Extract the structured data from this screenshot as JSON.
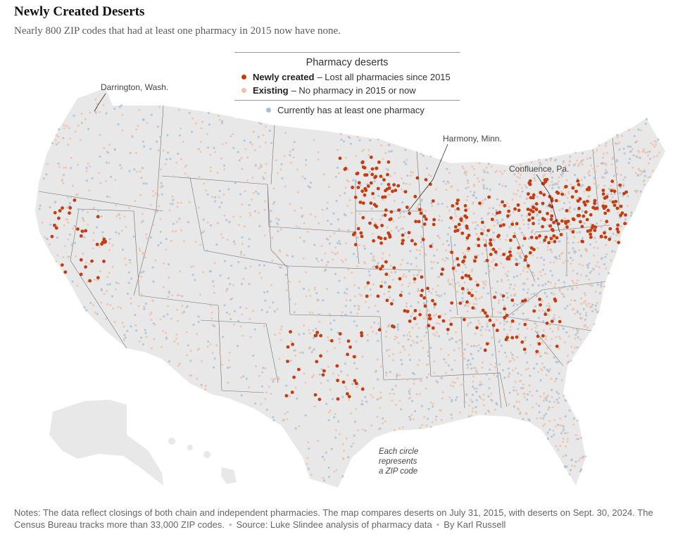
{
  "header": {
    "title": "Newly Created Deserts",
    "subtitle": "Nearly 800 ZIP codes that had at least one pharmacy in 2015 now have none."
  },
  "legend": {
    "title": "Pharmacy deserts",
    "items": [
      {
        "key": "newly",
        "label": "Newly created",
        "desc": "– Lost all pharmacies since 2015",
        "color": "#c43c10"
      },
      {
        "key": "existing",
        "label": "Existing",
        "desc": "– No pharmacy in 2015 or now",
        "color": "#f0bfa6"
      }
    ],
    "pharmacy": {
      "desc": "Currently has at least one pharmacy",
      "color": "#a8c0d6"
    }
  },
  "map": {
    "land_color": "#e8e8e8",
    "border_color": "#6e6e6e",
    "annotations": [
      {
        "key": "darrington",
        "text": "Darrington, Wash."
      },
      {
        "key": "harmony",
        "text": "Harmony, Minn."
      },
      {
        "key": "confluence",
        "text": "Confluence, Pa."
      }
    ],
    "zip_note": [
      "Each circle",
      "represents",
      "a ZIP code"
    ]
  },
  "footer": {
    "notes": "Notes: The data reflect closings of both chain and independent pharmacies. The map compares deserts on July 31, 2015, with deserts on Sept. 30, 2024. The Census Bureau tracks more than 33,000 ZIP codes.",
    "source": "Source: Luke Slindee analysis of pharmacy data",
    "byline": "By Karl Russell"
  }
}
